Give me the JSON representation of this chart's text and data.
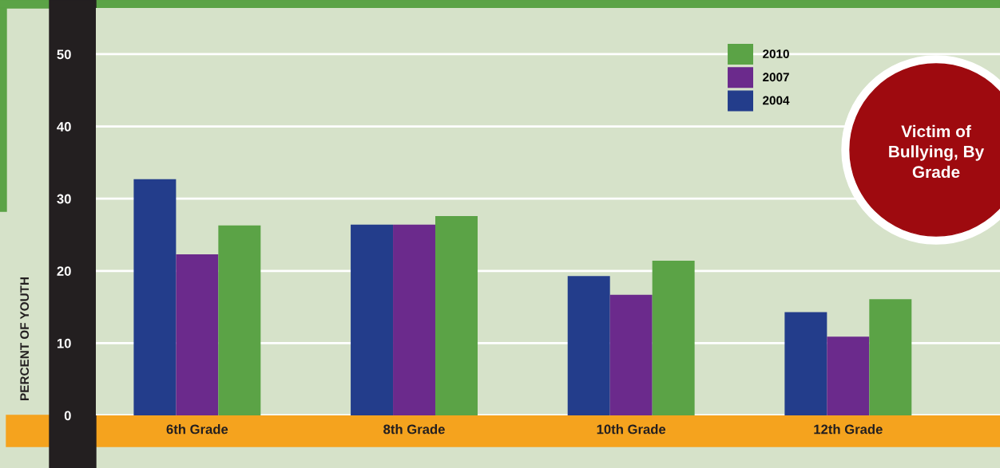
{
  "chart_data": {
    "type": "bar",
    "title": "Victim of\nBullying, By\nGrade",
    "ylabel": "PERCENT OF YOUTH",
    "categories": [
      "6th Grade",
      "8th Grade",
      "10th Grade",
      "12th Grade"
    ],
    "series": [
      {
        "name": "2004",
        "color": "#233d8b",
        "values": [
          32.7,
          26.4,
          19.3,
          14.3
        ]
      },
      {
        "name": "2007",
        "color": "#6b2a8c",
        "values": [
          22.3,
          26.4,
          16.7,
          10.9
        ]
      },
      {
        "name": "2010",
        "color": "#5ba346",
        "values": [
          26.3,
          27.6,
          21.4,
          16.1
        ]
      }
    ],
    "ylim": [
      0,
      56.4
    ],
    "yticks": [
      0,
      10,
      20,
      30,
      40,
      50
    ],
    "grid": "y",
    "legend": "top right"
  }
}
